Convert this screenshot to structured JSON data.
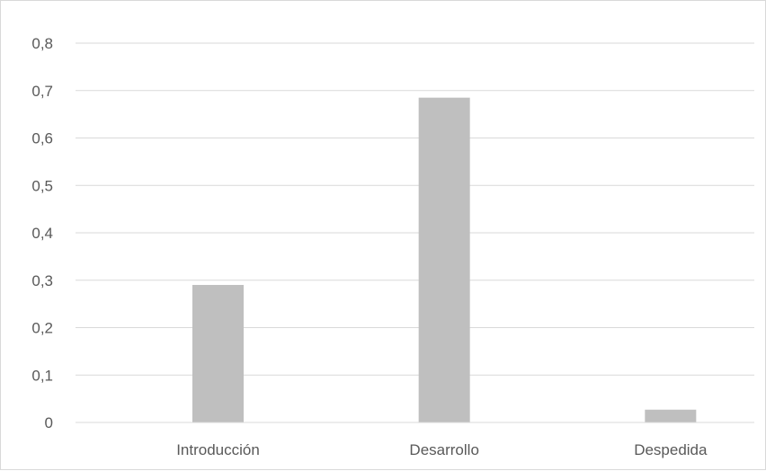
{
  "chart_data": {
    "type": "bar",
    "title": "",
    "xlabel": "",
    "ylabel": "",
    "categories": [
      "Introducción",
      "Desarrollo",
      "Despedida"
    ],
    "series": [
      {
        "name": "",
        "values": [
          0.29,
          0.685,
          0.027
        ],
        "color": "#bfbfbf"
      }
    ],
    "ylim": [
      0,
      0.8
    ],
    "y_ticks": [
      "0",
      "0,1",
      "0,2",
      "0,3",
      "0,4",
      "0,5",
      "0,6",
      "0,7",
      "0,8"
    ],
    "y_tick_values": [
      0,
      0.1,
      0.2,
      0.3,
      0.4,
      0.5,
      0.6,
      0.7,
      0.8
    ],
    "grid": true,
    "gridline_color": "#d9d9d9",
    "axis_line_color": "#d9d9d9",
    "label_color": "#595959",
    "legend": "none"
  }
}
